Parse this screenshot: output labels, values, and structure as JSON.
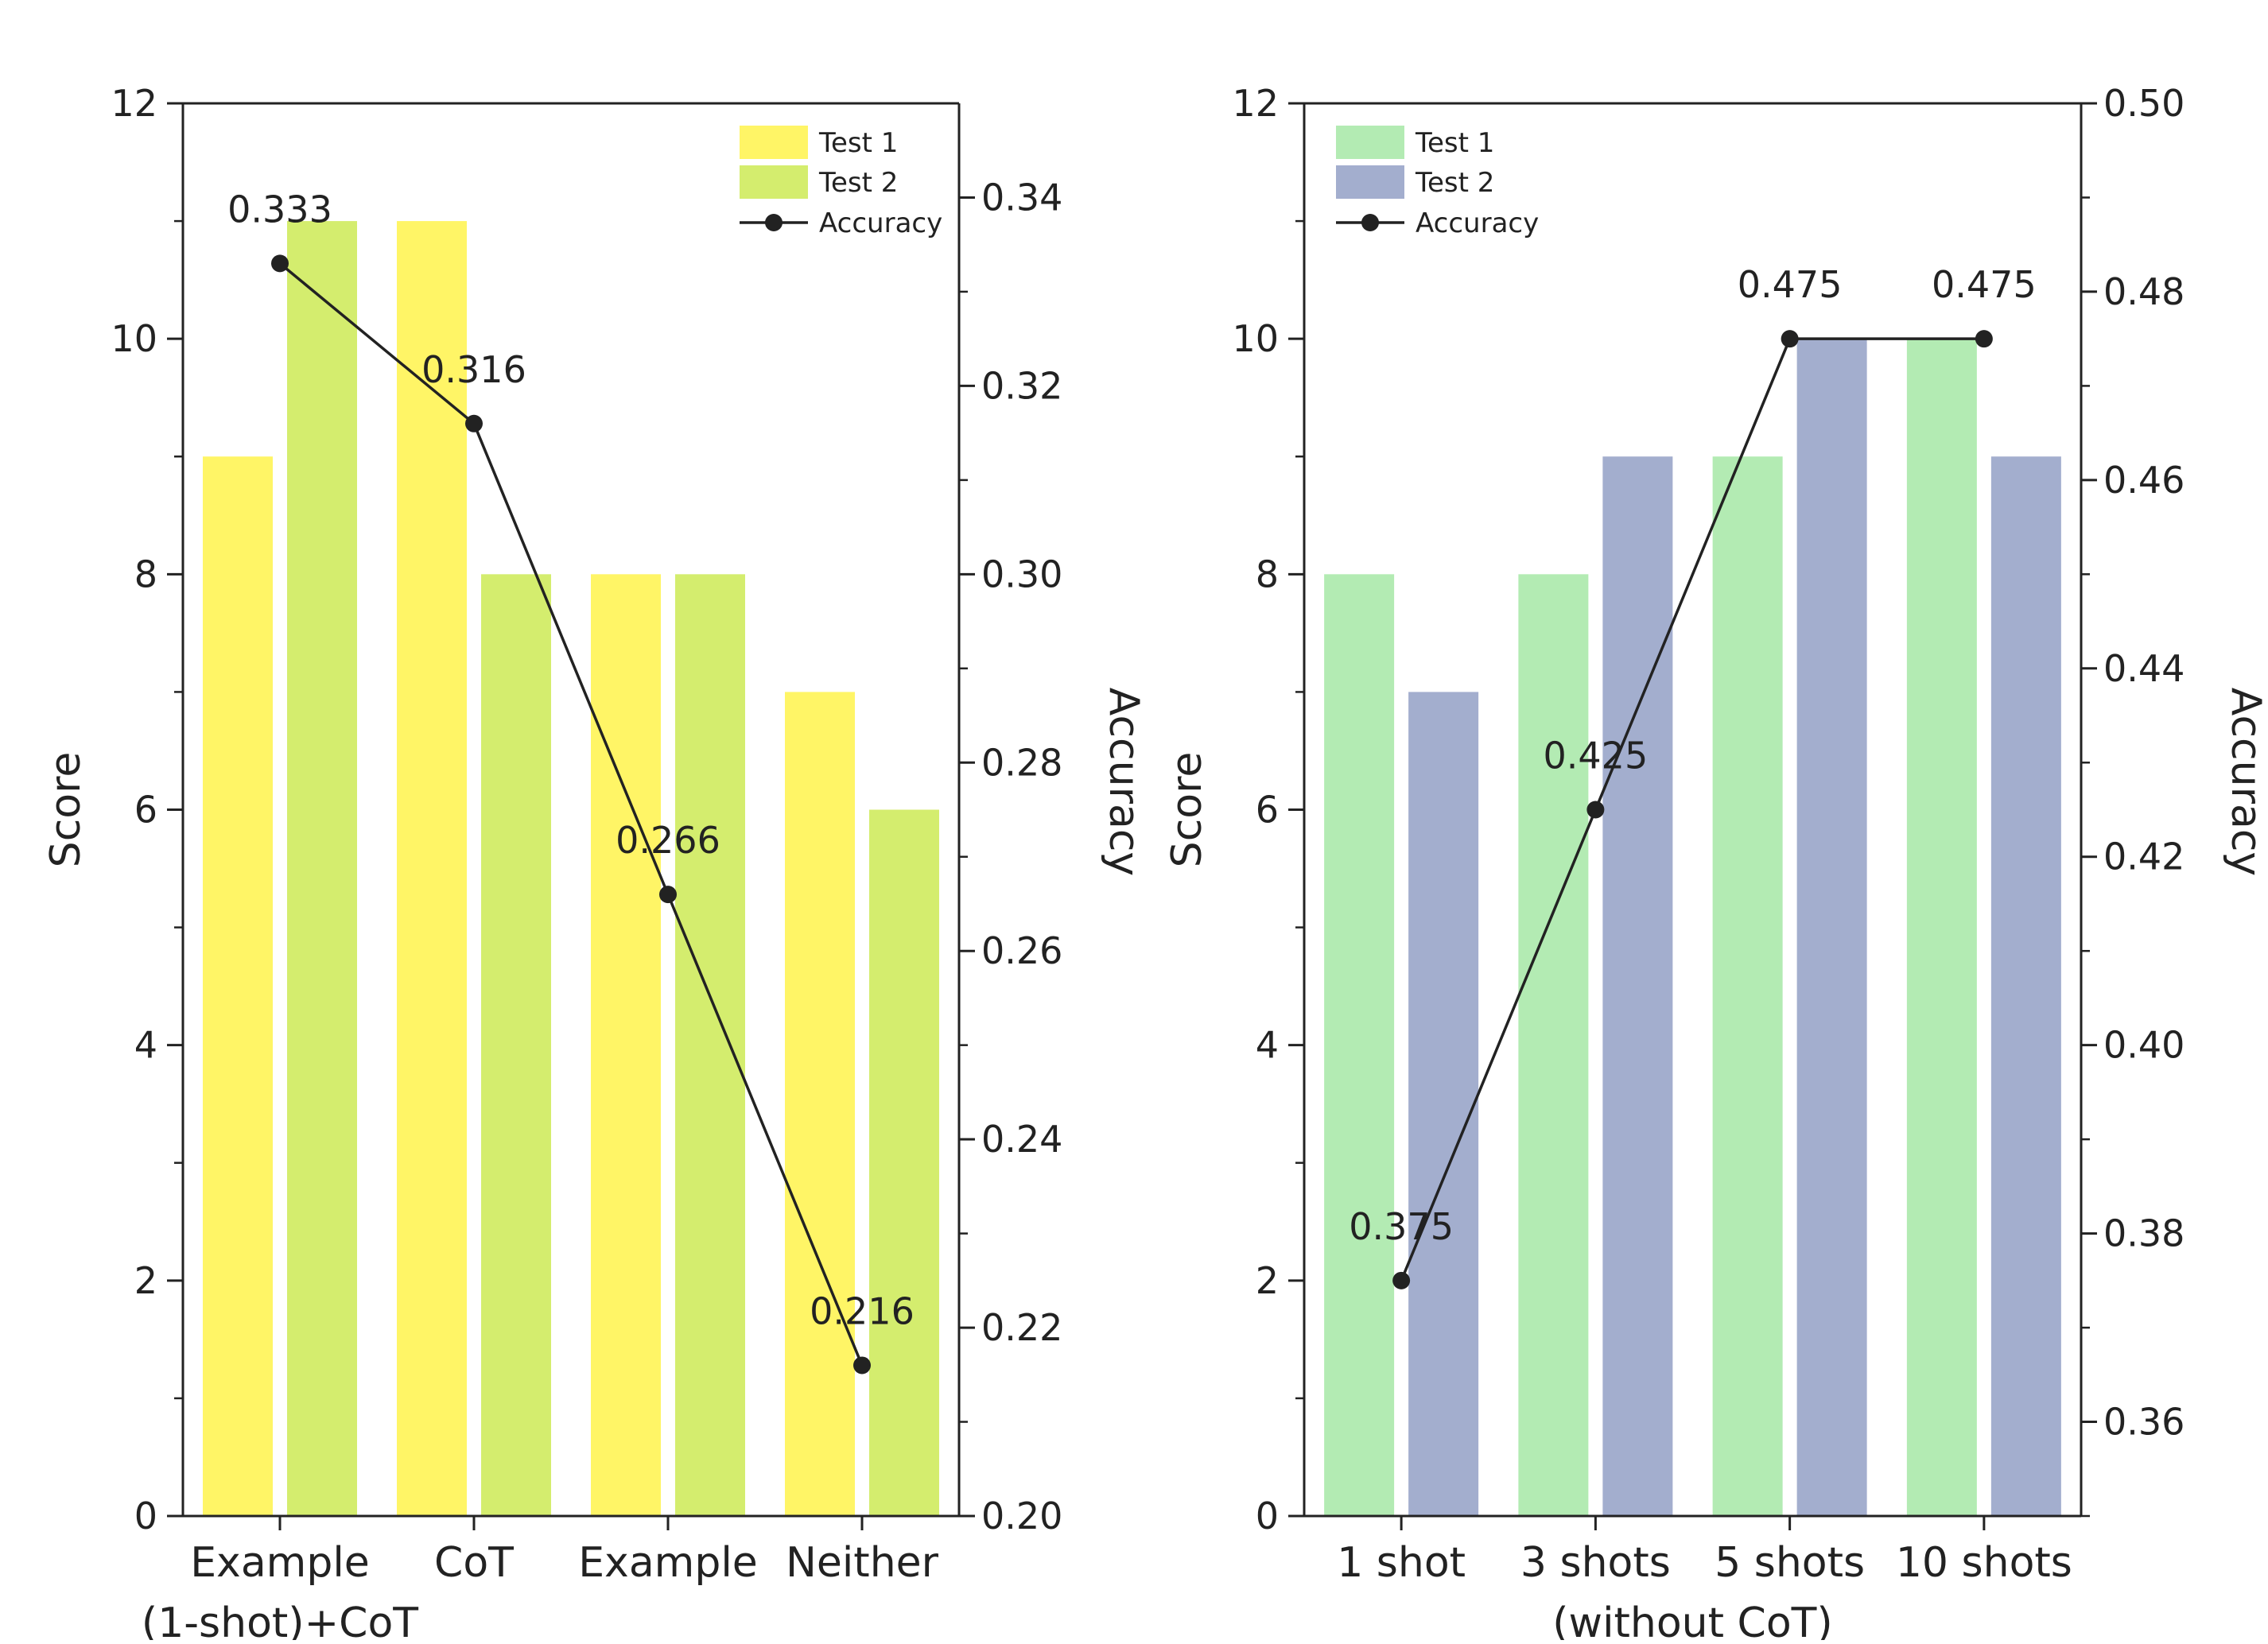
{
  "chart_data": [
    {
      "type": "bar",
      "categories": [
        "Example",
        "CoT",
        "Example",
        "Neither"
      ],
      "category_sublabels": [
        "(1-shot)+CoT",
        "",
        "",
        ""
      ],
      "series": [
        {
          "name": "Test 1",
          "values": [
            9,
            11,
            8,
            7
          ],
          "color": "#FFF566"
        },
        {
          "name": "Test 2",
          "values": [
            11,
            8,
            8,
            6
          ],
          "color": "#D4ED6E"
        }
      ],
      "line": {
        "name": "Accuracy",
        "values": [
          0.333,
          0.316,
          0.266,
          0.216
        ],
        "labels": [
          "0.333",
          "0.316",
          "0.266",
          "0.216"
        ],
        "color": "#222222"
      },
      "ylabel": "Score",
      "ylabel_right": "Accuracy",
      "ylim": [
        0,
        12
      ],
      "yticks": [
        "0",
        "2",
        "4",
        "6",
        "8",
        "10",
        "12"
      ],
      "ylim_right": [
        0.2,
        0.35
      ],
      "yticks_right": [
        "0.20",
        "0.22",
        "0.24",
        "0.26",
        "0.28",
        "0.30",
        "0.32",
        "0.34"
      ],
      "legend": "top-right"
    },
    {
      "type": "bar",
      "categories": [
        "1 shot",
        "3 shots",
        "5 shots",
        "10 shots"
      ],
      "xlabel": "(without CoT)",
      "series": [
        {
          "name": "Test 1",
          "values": [
            8,
            8,
            9,
            10
          ],
          "color": "#B3EBB3"
        },
        {
          "name": "Test 2",
          "values": [
            7,
            9,
            10,
            9
          ],
          "color": "#A3AECE"
        }
      ],
      "line": {
        "name": "Accuracy",
        "values": [
          0.375,
          0.425,
          0.475,
          0.475
        ],
        "labels": [
          "0.375",
          "0.425",
          "0.475",
          "0.475"
        ],
        "color": "#222222"
      },
      "ylabel": "Score",
      "ylabel_right": "Accuracy",
      "ylim": [
        0,
        12
      ],
      "yticks": [
        "0",
        "2",
        "4",
        "6",
        "8",
        "10",
        "12"
      ],
      "ylim_right": [
        0.35,
        0.5
      ],
      "yticks_right": [
        "0.36",
        "0.38",
        "0.40",
        "0.42",
        "0.44",
        "0.46",
        "0.48",
        "0.50"
      ],
      "legend": "top-left"
    }
  ]
}
